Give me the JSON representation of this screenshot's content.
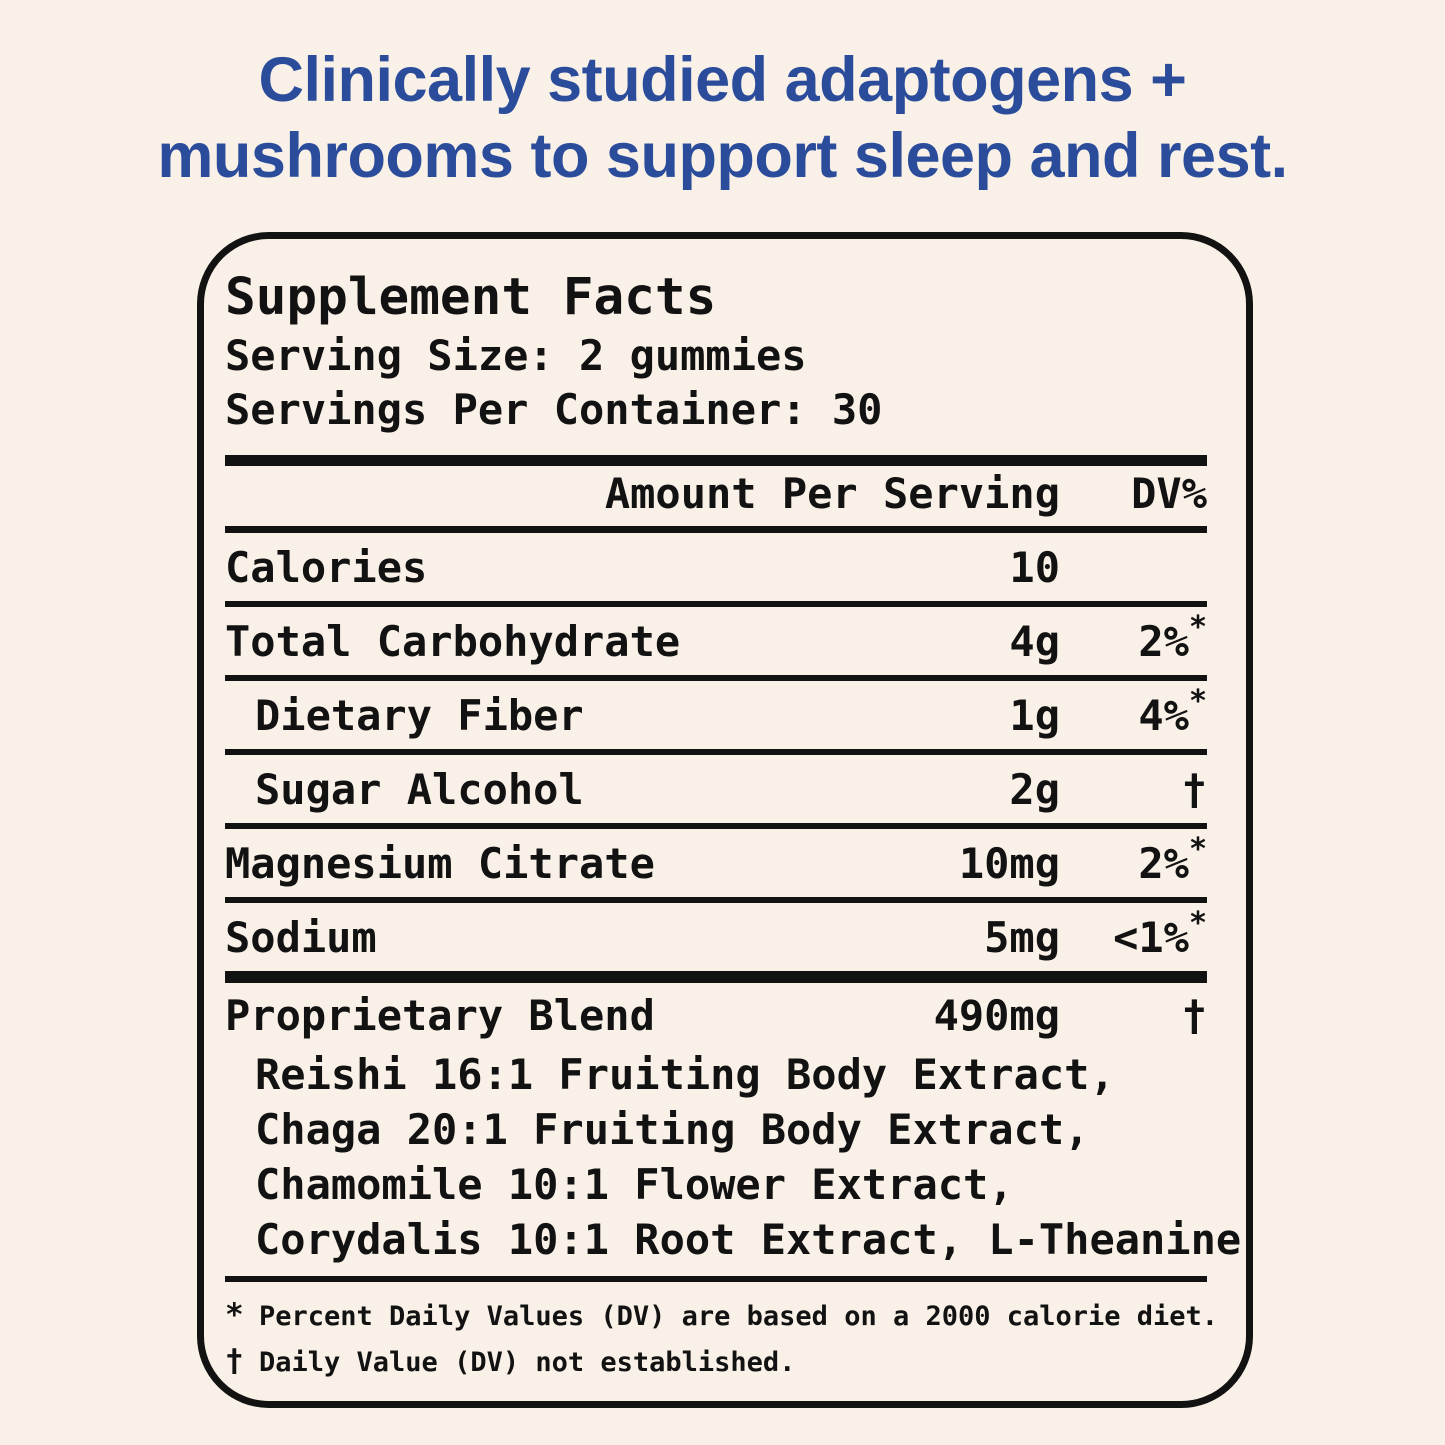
{
  "page": {
    "background_color": "#f9f1e8",
    "accent_blue": "#2b4c9b",
    "text_color": "#121212"
  },
  "heading": {
    "line1": "Clinically studied adaptogens +",
    "line2": "mushrooms to support sleep and rest."
  },
  "panel": {
    "title": "Supplement Facts",
    "serving_size": "Serving Size: 2 gummies",
    "servings_per_container": "Servings Per Container: 30",
    "columns": {
      "amount": "Amount Per Serving",
      "dv": "DV%"
    },
    "rows": [
      {
        "label": "Calories",
        "amount": "10",
        "dv": "",
        "sup": ""
      },
      {
        "label": "Total Carbohydrate",
        "amount": "4g",
        "dv": "2%",
        "sup": "*"
      },
      {
        "label": "Dietary Fiber",
        "amount": "1g",
        "dv": "4%",
        "sup": "*"
      },
      {
        "label": "Sugar Alcohol",
        "amount": "2g",
        "dv": "†",
        "sup": ""
      },
      {
        "label": "Magnesium Citrate",
        "amount": "10mg",
        "dv": "2%",
        "sup": "*"
      },
      {
        "label": "Sodium",
        "amount": "5mg",
        "dv": "<1%",
        "sup": "*"
      }
    ],
    "blend": {
      "label": "Proprietary Blend",
      "amount": "490mg",
      "dv": "†",
      "ingredients": [
        "Reishi 16:1 Fruiting Body Extract,",
        "Chaga 20:1 Fruiting Body Extract,",
        "Chamomile 10:1 Flower Extract,",
        "Corydalis 10:1 Root Extract, L-Theanine"
      ]
    },
    "footnotes": [
      {
        "symbol": "*",
        "text": "Percent Daily Values (DV) are based on a 2000 calorie diet."
      },
      {
        "symbol": "†",
        "text": "Daily Value (DV) not established."
      }
    ]
  }
}
